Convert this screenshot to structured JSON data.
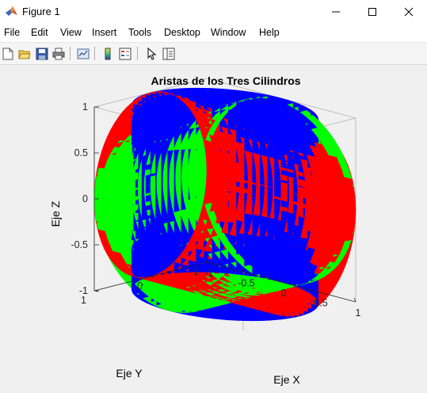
{
  "window": {
    "title": "Figure 1",
    "icon": "matlab-icon",
    "controls": [
      "minimize-icon",
      "maximize-icon",
      "close-icon"
    ]
  },
  "menubar": {
    "items": [
      "File",
      "Edit",
      "View",
      "Insert",
      "Tools",
      "Desktop",
      "Window",
      "Help"
    ]
  },
  "toolbar": {
    "buttons": [
      "new-figure-icon",
      "open-file-icon",
      "save-icon",
      "print-icon",
      "link-plot-icon",
      "colorbar-icon",
      "legend-icon",
      "pointer-icon",
      "property-inspector-icon"
    ]
  },
  "colors": {
    "cylinder_x": "#ff0000",
    "cylinder_y": "#00ff00",
    "cylinder_z": "#0000ff"
  },
  "chart_data": {
    "type": "3d-surface",
    "title": "Aristas de los Tres Cilindros",
    "xlabel": "Eje X",
    "ylabel": "Eje Y",
    "zlabel": "Eje Z",
    "xlim": [
      -1,
      1
    ],
    "ylim": [
      -1,
      1
    ],
    "zlim": [
      -1,
      1
    ],
    "x_ticks": [
      "-1",
      "-0.5",
      "0",
      "0.5",
      "1"
    ],
    "y_ticks": [
      "-1",
      "0",
      "1"
    ],
    "z_ticks": [
      "-1",
      "-0.5",
      "0",
      "0.5",
      "1"
    ],
    "grid": false,
    "box": true,
    "surfaces": [
      {
        "axis": "x",
        "equation": "y^2 + z^2 = 1",
        "color": "red"
      },
      {
        "axis": "y",
        "equation": "x^2 + z^2 = 1",
        "color": "green"
      },
      {
        "axis": "z",
        "equation": "x^2 + y^2 = 1",
        "color": "blue"
      }
    ]
  }
}
